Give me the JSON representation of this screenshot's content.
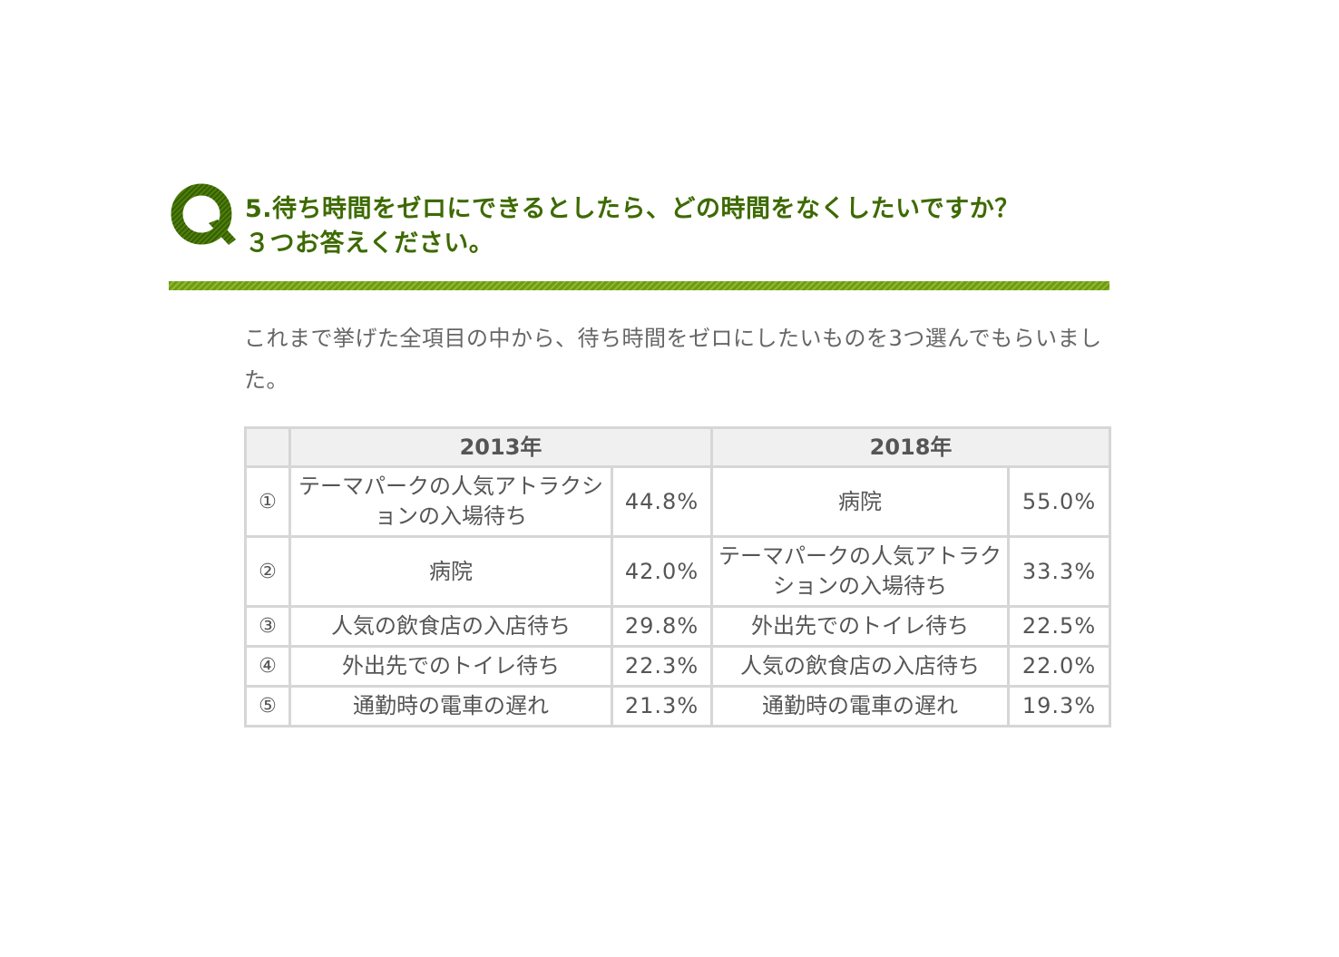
{
  "question": {
    "title_line1": "5.待ち時間をゼロにできるとしたら、どの時間をなくしたいですか？",
    "title_line2": "３つお答えください。"
  },
  "intro_text": "これまで挙げた全項目の中から、待ち時間をゼロにしたいものを3つ選んでもらいました。",
  "colors": {
    "accent_green": "#3d6a00",
    "rule_green": "#6f9a16",
    "header_bg": "#f0f0f0",
    "border": "#d6d6d6"
  },
  "table": {
    "headers": [
      "2013年",
      "2018年"
    ],
    "rows": [
      {
        "rank": "①",
        "item_2013": "テーマパークの人気アトラクションの入場待ち",
        "pct_2013": "44.8%",
        "item_2018": "病院",
        "pct_2018": "55.0%"
      },
      {
        "rank": "②",
        "item_2013": "病院",
        "pct_2013": "42.0%",
        "item_2018": "テーマパークの人気アトラクションの入場待ち",
        "pct_2018": "33.3%"
      },
      {
        "rank": "③",
        "item_2013": "人気の飲食店の入店待ち",
        "pct_2013": "29.8%",
        "item_2018": "外出先でのトイレ待ち",
        "pct_2018": "22.5%"
      },
      {
        "rank": "④",
        "item_2013": "外出先でのトイレ待ち",
        "pct_2013": "22.3%",
        "item_2018": "人気の飲食店の入店待ち",
        "pct_2018": "22.0%"
      },
      {
        "rank": "⑤",
        "item_2013": "通勤時の電車の遅れ",
        "pct_2013": "21.3%",
        "item_2018": "通勤時の電車の遅れ",
        "pct_2018": "19.3%"
      }
    ]
  }
}
